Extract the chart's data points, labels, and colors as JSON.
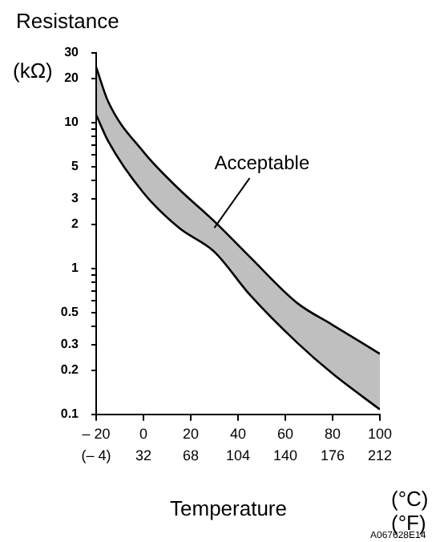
{
  "chart_data": {
    "type": "line",
    "ylabel": "Resistance",
    "xlabel": "Temperature",
    "log": true,
    "grid": false,
    "legend": false,
    "marker": "none",
    "line_style": "solid",
    "x": [
      -20,
      -15,
      0,
      15,
      30,
      45,
      65,
      80,
      100
    ],
    "series": [
      {
        "type": "line",
        "color": "#000000",
        "values": [
          11.3,
          7.5,
          3.3,
          1.9,
          1.3,
          0.66,
          0.31,
          0.19,
          0.108
        ]
      },
      {
        "type": "area",
        "color": "#000000",
        "values": [
          24,
          14,
          6.3,
          3.5,
          2.1,
          1.2,
          0.58,
          0.41,
          0.26
        ]
      }
    ],
    "xlim": [
      -20,
      100
    ],
    "xticks": [
      {
        "value": -20,
        "label": "– 20"
      },
      0,
      20,
      40,
      60,
      80,
      100
    ],
    "x2lim": [
      -4,
      212
    ],
    "x2ticks": [
      {
        "value": -4,
        "label": "(– 4)"
      },
      32,
      68,
      104,
      140,
      176,
      212
    ],
    "ylim": [
      0.1,
      30
    ],
    "yticks": [
      0.1,
      0.2,
      0.3,
      {
        "value": 0.4,
        "label": null
      },
      0.5,
      {
        "value": 0.6,
        "label": null
      },
      {
        "value": 0.7,
        "label": null
      },
      {
        "value": 0.8,
        "label": null
      },
      {
        "value": 0.9,
        "label": null
      },
      1,
      2,
      3,
      {
        "value": 4,
        "label": null
      },
      5,
      {
        "value": 6,
        "label": null
      },
      {
        "value": 7,
        "label": null
      },
      {
        "value": 8,
        "label": null
      },
      {
        "value": 9,
        "label": null
      },
      10,
      20,
      30
    ],
    "annotations": [
      {
        "text": "Acceptable",
        "x": 30,
        "y": 1.9
      },
      "(kΩ)",
      "(°C)",
      "(°F)",
      "A067628E14"
    ]
  }
}
